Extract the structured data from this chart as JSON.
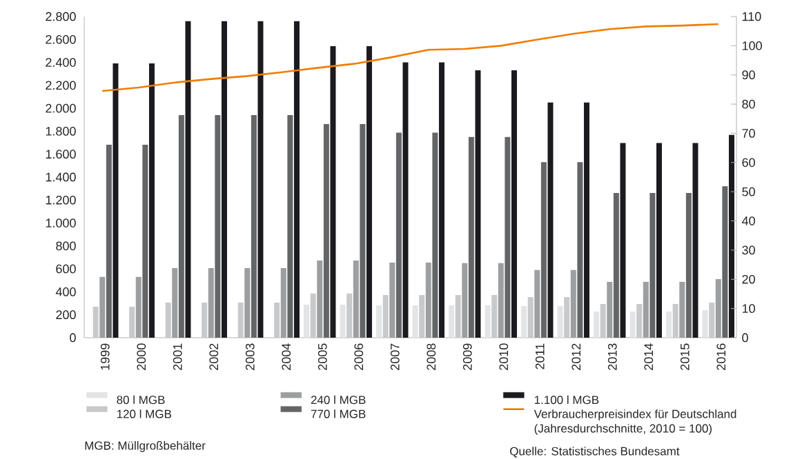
{
  "chart_data": {
    "type": "bar",
    "categories": [
      "1999",
      "2000",
      "2001",
      "2002",
      "2003",
      "2004",
      "2005",
      "2006",
      "2007",
      "2008",
      "2009",
      "2010",
      "2011",
      "2012",
      "2013",
      "2014",
      "2015",
      "2016"
    ],
    "series": [
      {
        "name": "80 l MGB",
        "color": "#e3e4e5",
        "values": [
          null,
          null,
          null,
          null,
          null,
          null,
          288,
          288,
          282,
          282,
          282,
          282,
          276,
          276,
          228,
          228,
          228,
          240
        ]
      },
      {
        "name": "120 l MGB",
        "color": "#c8c9cb",
        "values": [
          270,
          270,
          306,
          306,
          306,
          306,
          385,
          385,
          372,
          372,
          372,
          372,
          354,
          354,
          294,
          294,
          294,
          306
        ]
      },
      {
        "name": "240 l MGB",
        "color": "#9d9ea0",
        "values": [
          530,
          530,
          607,
          607,
          607,
          607,
          673,
          673,
          655,
          655,
          650,
          650,
          590,
          590,
          487,
          487,
          487,
          511
        ]
      },
      {
        "name": "770 l MGB",
        "color": "#646567",
        "values": [
          1683,
          1683,
          1940,
          1940,
          1940,
          1940,
          1863,
          1863,
          1788,
          1788,
          1750,
          1750,
          1530,
          1530,
          1262,
          1262,
          1262,
          1320
        ]
      },
      {
        "name": "1.100 l MGB",
        "color": "#1b1a1e",
        "values": [
          2392,
          2392,
          2760,
          2760,
          2760,
          2760,
          2542,
          2542,
          2400,
          2400,
          2332,
          2332,
          2050,
          2050,
          1697,
          1697,
          1697,
          1768
        ]
      },
      {
        "name": "Verbraucherpreisindex für Deutschland (Jahresdurchschnitte, 2010 = 100)",
        "type": "line",
        "axis": "y2",
        "color": "#f07d00",
        "values": [
          84.5,
          85.7,
          87.4,
          88.6,
          89.6,
          91.0,
          92.5,
          93.9,
          96.1,
          98.6,
          98.9,
          100.0,
          102.1,
          104.1,
          105.7,
          106.6,
          106.9,
          107.4
        ]
      }
    ],
    "ylim": [
      0,
      2800
    ],
    "yticks": [
      0,
      200,
      400,
      600,
      800,
      {
        "value": 1000,
        "label": "1.000"
      },
      {
        "value": 1200,
        "label": "1.200"
      },
      {
        "value": 1400,
        "label": "1.400"
      },
      {
        "value": 1600,
        "label": "1.600"
      },
      {
        "value": 1800,
        "label": "1.800"
      },
      {
        "value": 2000,
        "label": "2.000"
      },
      {
        "value": 2200,
        "label": "2.200"
      },
      {
        "value": 2400,
        "label": "2.400"
      },
      {
        "value": 2600,
        "label": "2.600"
      },
      {
        "value": 2800,
        "label": "2.800"
      }
    ],
    "y2lim": [
      0,
      110
    ],
    "y2ticks": [
      0,
      10,
      20,
      30,
      40,
      50,
      60,
      70,
      80,
      90,
      100,
      110
    ],
    "legend": "bottom",
    "annotations": [
      "MGB: Müllgroßbehälter",
      "Quelle: Statistisches Bundesamt"
    ]
  }
}
